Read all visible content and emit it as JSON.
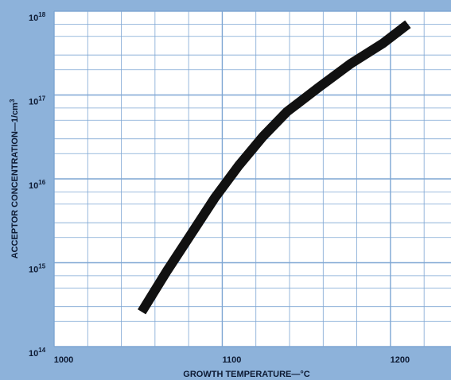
{
  "chart_data": {
    "type": "line",
    "log_y": true,
    "x_label": "GROWTH TEMPERATURE—°C",
    "y_label": "ACCEPTOR CONCENTRATION—1/cm",
    "y_label_exponent": "3",
    "series": [
      {
        "color": "#111111",
        "x": [
          1052.1,
          1067.3,
          1081.5,
          1095.7,
          1109.9,
          1124.2,
          1138.4,
          1157.3,
          1176.3,
          1195.3,
          1210.4
        ],
        "values": [
          260000000000000.0,
          810000000000000.0,
          2200000000000000.0,
          6000000000000000.0,
          1.45e+16,
          3.2e+16,
          6.3e+16,
          1.23e+17,
          2.36e+17,
          4.1e+17,
          7e+17
        ]
      }
    ],
    "xlim": [
      1000,
      1236
    ],
    "xticks": [
      1000,
      1100,
      1200
    ],
    "x_minor_ticks": [
      1020,
      1040,
      1060,
      1080,
      1120,
      1140,
      1160,
      1180,
      1220
    ],
    "ylim": [
      100000000000000.0,
      1e+18
    ],
    "yticks": [
      {
        "value": 100000000000000.0,
        "label": "10",
        "exponent": "14"
      },
      {
        "value": 1000000000000000.0,
        "label": "10",
        "exponent": "15"
      },
      {
        "value": 1e+16,
        "label": "10",
        "exponent": "16"
      },
      {
        "value": 1e+17,
        "label": "10",
        "exponent": "17"
      },
      {
        "value": 1e+18,
        "label": "10",
        "exponent": "18"
      }
    ],
    "y_minor_ticks": [
      200000000000000.0,
      300000000000000.0,
      500000000000000.0,
      700000000000000.0,
      2000000000000000.0,
      3000000000000000.0,
      5000000000000000.0,
      7000000000000000.0,
      2e+16,
      3e+16,
      5e+16,
      7e+16,
      2e+17,
      3e+17,
      5e+17,
      7e+17
    ],
    "grid": true
  }
}
